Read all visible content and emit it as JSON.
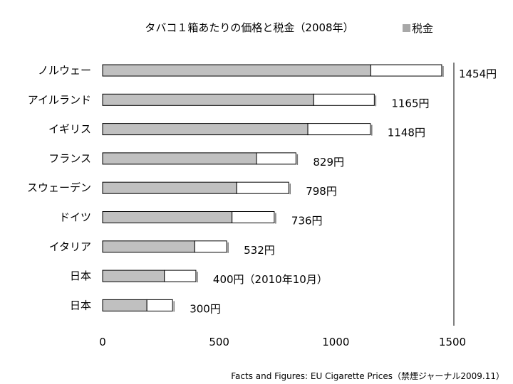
{
  "chart_data": {
    "type": "bar",
    "orientation": "horizontal",
    "stacked": true,
    "title": "タバコ１箱あたりの価格と税金（2008年）",
    "categories": [
      "ノルウェー",
      "アイルランド",
      "イギリス",
      "フランス",
      "スウェーデン",
      "ドイツ",
      "イタリア",
      "日本",
      "日本"
    ],
    "value_labels": [
      "1454円",
      "1165円",
      "1148円",
      "829円",
      "798円",
      "736円",
      "532円",
      "400円（2010年10月）",
      "300円"
    ],
    "series": [
      {
        "name": "税金",
        "color": "#c0c0c0",
        "values": [
          1150,
          905,
          880,
          660,
          575,
          555,
          395,
          265,
          190
        ]
      },
      {
        "color": "#ffffff",
        "values": [
          304,
          260,
          268,
          169,
          223,
          181,
          137,
          135,
          110
        ]
      }
    ],
    "totals": [
      1454,
      1165,
      1148,
      829,
      798,
      736,
      532,
      400,
      300
    ],
    "xlim": [
      0,
      1500
    ],
    "xticks": [
      0,
      500,
      1000,
      1500
    ],
    "grid": false,
    "legend_position": "top-right",
    "source": "Facts and Figures: EU Cigarette Prices（禁煙ジャーナル2009.11）"
  }
}
